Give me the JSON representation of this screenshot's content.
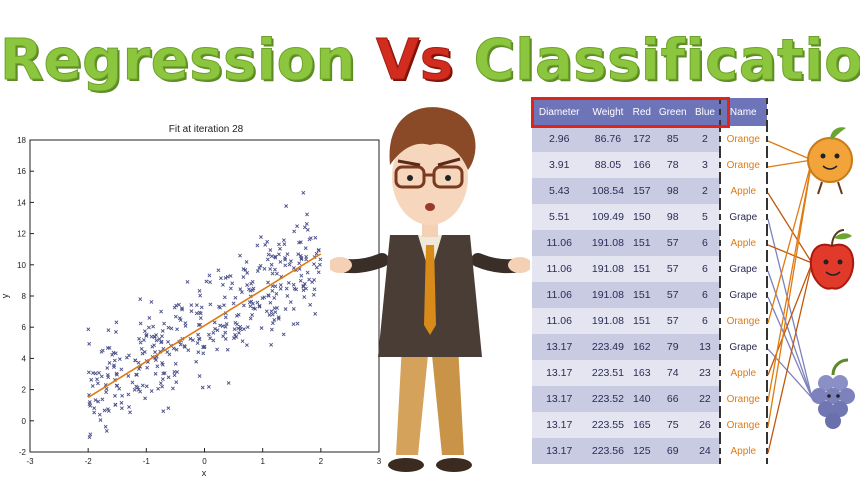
{
  "title": {
    "part1": "Regression ",
    "vs": "Vs",
    "part2": " Classification"
  },
  "chart_data": {
    "type": "scatter",
    "title": "Fit at iteration 28",
    "xlabel": "x",
    "ylabel": "y",
    "xlim": [
      -3,
      3
    ],
    "ylim": [
      -2,
      18
    ],
    "xticks": [
      -3,
      -2,
      -1,
      0,
      1,
      2,
      3
    ],
    "yticks": [
      -2,
      0,
      2,
      4,
      6,
      8,
      10,
      12,
      14,
      16,
      18
    ],
    "fit_line": {
      "x": [
        -2,
        2
      ],
      "y": [
        1.5,
        10.7
      ]
    },
    "point_color": "#4a4f8a",
    "line_color": "#e07a10",
    "n_points": 400,
    "x_range": [
      -2,
      2
    ],
    "noise": 1.6
  },
  "table": {
    "headers": [
      "Diameter",
      "Weight",
      "Red",
      "Green",
      "Blue",
      "Name"
    ],
    "rows": [
      [
        "2.96",
        "86.76",
        "172",
        "85",
        "2",
        "Orange"
      ],
      [
        "3.91",
        "88.05",
        "166",
        "78",
        "3",
        "Orange"
      ],
      [
        "5.43",
        "108.54",
        "157",
        "98",
        "2",
        "Apple"
      ],
      [
        "5.51",
        "109.49",
        "150",
        "98",
        "5",
        "Grape"
      ],
      [
        "11.06",
        "191.08",
        "151",
        "57",
        "6",
        "Apple"
      ],
      [
        "11.06",
        "191.08",
        "151",
        "57",
        "6",
        "Grape"
      ],
      [
        "11.06",
        "191.08",
        "151",
        "57",
        "6",
        "Grape"
      ],
      [
        "11.06",
        "191.08",
        "151",
        "57",
        "6",
        "Orange"
      ],
      [
        "13.17",
        "223.49",
        "162",
        "79",
        "13",
        "Grape"
      ],
      [
        "13.17",
        "223.51",
        "163",
        "74",
        "23",
        "Apple"
      ],
      [
        "13.17",
        "223.52",
        "140",
        "66",
        "22",
        "Orange"
      ],
      [
        "13.17",
        "223.55",
        "165",
        "75",
        "26",
        "Orange"
      ],
      [
        "13.17",
        "223.56",
        "125",
        "69",
        "24",
        "Apple"
      ]
    ]
  },
  "colors": {
    "title_green": "#8cc63f",
    "title_red": "#d22c1e",
    "table_header": "#6e74b8",
    "highlight": "#e02418",
    "orange_label": "#e07a10"
  },
  "icons": [
    "orange-fruit-icon",
    "apple-fruit-icon",
    "grape-fruit-icon",
    "confused-man-illustration"
  ]
}
